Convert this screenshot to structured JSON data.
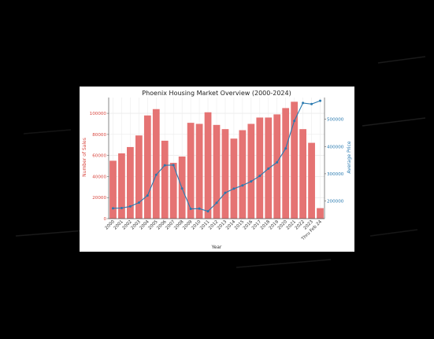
{
  "chart_data": {
    "type": "bar",
    "title": "Phoenix Housing Market Overview (2000-2024)",
    "xlabel": "Year",
    "ylabel": "Number of Sales",
    "y2label": "Average Price",
    "categories": [
      "2000",
      "2001",
      "2002",
      "2003",
      "2004",
      "2005",
      "2006",
      "2007",
      "2008",
      "2009",
      "2010",
      "2011",
      "2012",
      "2013",
      "2014",
      "2015",
      "2016",
      "2017",
      "2018",
      "2019",
      "2020",
      "2021",
      "2022",
      "2023",
      "Thru Feb 24"
    ],
    "series": [
      {
        "name": "Number of Sales",
        "type": "bar",
        "axis": "left",
        "color": "#e57373",
        "values": [
          55000,
          62000,
          68000,
          79000,
          98000,
          104000,
          74000,
          53000,
          59000,
          91000,
          90000,
          101000,
          89000,
          85000,
          76000,
          84000,
          90000,
          96000,
          96000,
          99000,
          105000,
          111000,
          85000,
          72000,
          10000
        ]
      },
      {
        "name": "Average Price",
        "type": "line",
        "axis": "right",
        "color": "#2a7ab0",
        "values": [
          173000,
          174000,
          180000,
          194000,
          220000,
          296000,
          331000,
          332000,
          246000,
          171000,
          172000,
          162000,
          193000,
          230000,
          245000,
          257000,
          272000,
          292000,
          319000,
          342000,
          393000,
          494000,
          560000,
          556000,
          568000
        ]
      }
    ],
    "ylim": [
      0,
      115000
    ],
    "yticks": [
      0,
      20000,
      40000,
      60000,
      80000,
      100000
    ],
    "y2lim": [
      135000,
      580000
    ],
    "y2ticks": [
      200000,
      300000,
      400000,
      500000
    ],
    "grid": true,
    "colors": {
      "left_axis": "#d9463e",
      "right_axis": "#2a7ab0"
    }
  }
}
